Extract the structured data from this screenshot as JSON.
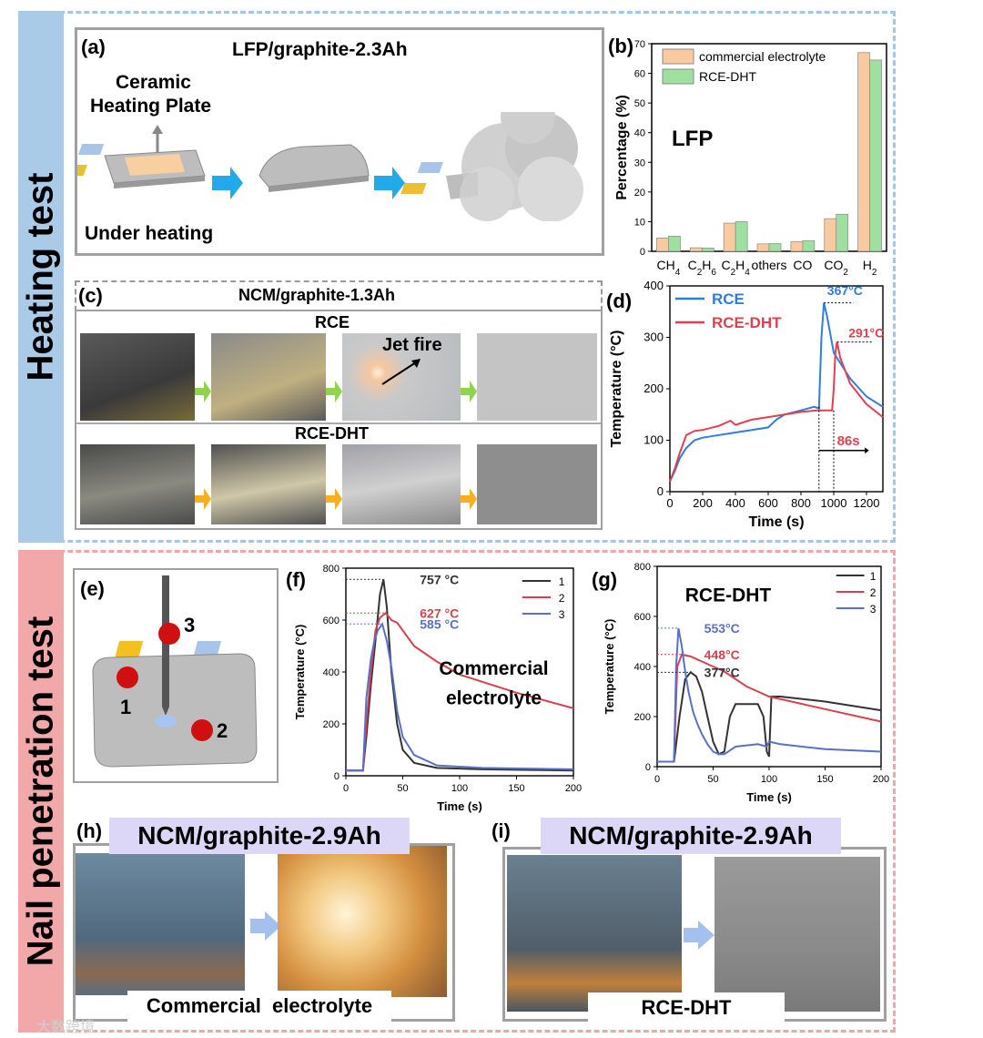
{
  "sections": {
    "heating": "Heating test",
    "nail": "Nail penetration test"
  },
  "colors": {
    "heating_border": "#9ec8ea",
    "heating_side": "#a9cbe8",
    "nail_border": "#f0a6a6",
    "nail_side": "#f2a8a8",
    "orange_bar": "#f9c9a0",
    "green_bar": "#9fdf9f",
    "rce_blue": "#2f7ddc",
    "rce_red": "#e04050",
    "curve_black": "#333333",
    "curve_red": "#d9404e",
    "curve_blue": "#5a6fc8"
  },
  "panel_a": {
    "letter": "(a)",
    "title": "LFP/graphite-2.3Ah",
    "plate_label_1": "Ceramic",
    "plate_label_2": "Heating Plate",
    "caption": "Under heating"
  },
  "panel_c": {
    "letter": "(c)",
    "title": "NCM/graphite-1.3Ah",
    "row1": "RCE",
    "row2": "RCE-DHT",
    "jet_fire": "Jet fire"
  },
  "panel_e": {
    "letter": "(e)",
    "points": [
      "1",
      "2",
      "3"
    ]
  },
  "panel_h": {
    "letter": "(h)",
    "title": "NCM/graphite-2.9Ah",
    "caption": "Commercial  electrolyte"
  },
  "panel_i": {
    "letter": "(i)",
    "title": "NCM/graphite-2.9Ah",
    "caption": "RCE-DHT"
  },
  "watermark": "大数跨境",
  "chart_data": [
    {
      "id": "b",
      "letter": "(b)",
      "type": "bar",
      "annotation": "LFP",
      "ylabel": "Percentage (%)",
      "ylim": [
        0,
        70
      ],
      "yticks": [
        "0",
        "10",
        "20",
        "30",
        "40",
        "50",
        "60",
        "70"
      ],
      "categories": [
        "CH4",
        "C2H6",
        "C2H4",
        "others",
        "CO",
        "CO2",
        "H2"
      ],
      "category_labels": {
        "ch4": {
          "main": "CH",
          "sub": "4"
        },
        "c2h6": {
          "main": "C",
          "sub": "2",
          "main2": "H",
          "sub2": "6"
        },
        "c2h4": {
          "main": "C",
          "sub": "2",
          "main2": "H",
          "sub2": "4"
        },
        "others": "others",
        "co": "CO",
        "co2": {
          "main": "CO",
          "sub": "2"
        },
        "h2": {
          "main": "H",
          "sub": "2"
        }
      },
      "legend": [
        "commercial electrolyte",
        "RCE-DHT"
      ],
      "series": [
        {
          "name": "commercial electrolyte",
          "values": [
            4.5,
            1.2,
            9.5,
            2.5,
            3.3,
            11,
            67
          ]
        },
        {
          "name": "RCE-DHT",
          "values": [
            5.1,
            1.1,
            10,
            2.6,
            3.6,
            12.5,
            64.5
          ]
        }
      ]
    },
    {
      "id": "d",
      "letter": "(d)",
      "type": "line",
      "xlabel": "Time (s)",
      "ylabel": "Temperature (°C)",
      "xlim": [
        0,
        1300
      ],
      "ylim": [
        0,
        400
      ],
      "xticks": [
        "0",
        "200",
        "400",
        "600",
        "800",
        "1000",
        "1200"
      ],
      "yticks": [
        "0",
        "100",
        "200",
        "300",
        "400"
      ],
      "legend": [
        "RCE",
        "RCE-DHT"
      ],
      "annotations": {
        "rce_peak": "367°C",
        "dht_peak": "291°C",
        "delay": "86s"
      },
      "series": [
        {
          "name": "RCE",
          "x": [
            0,
            30,
            60,
            100,
            150,
            200,
            300,
            400,
            500,
            600,
            650,
            700,
            800,
            880,
            910,
            925,
            940,
            960,
            1000,
            1100,
            1200,
            1300
          ],
          "y": [
            20,
            40,
            65,
            85,
            100,
            105,
            110,
            115,
            120,
            125,
            140,
            150,
            158,
            165,
            162,
            300,
            367,
            340,
            270,
            220,
            185,
            165
          ]
        },
        {
          "name": "RCE-DHT",
          "x": [
            0,
            30,
            60,
            100,
            150,
            200,
            300,
            370,
            400,
            500,
            600,
            700,
            800,
            900,
            990,
            1000,
            1010,
            1020,
            1040,
            1100,
            1200,
            1300
          ],
          "y": [
            20,
            45,
            75,
            110,
            118,
            120,
            128,
            138,
            130,
            140,
            145,
            150,
            155,
            158,
            158,
            200,
            270,
            291,
            260,
            210,
            170,
            145
          ]
        }
      ]
    },
    {
      "id": "f",
      "letter": "(f)",
      "type": "line",
      "xlabel": "Time (s)",
      "ylabel": "Temperature (°C)",
      "xlim": [
        0,
        200
      ],
      "ylim": [
        0,
        800
      ],
      "xticks": [
        "0",
        "50",
        "100",
        "150",
        "200"
      ],
      "yticks": [
        "0",
        "200",
        "400",
        "600",
        "800"
      ],
      "legend": [
        "1",
        "2",
        "3"
      ],
      "annotation_1": "Commercial",
      "annotation_2": "electrolyte",
      "peaks": {
        "p1": "757 °C",
        "p2": "627 °C",
        "p3": "585 °C"
      },
      "series": [
        {
          "name": "1",
          "x": [
            0,
            15,
            18,
            22,
            26,
            30,
            33,
            36,
            40,
            45,
            50,
            60,
            80,
            120,
            200
          ],
          "y": [
            20,
            20,
            150,
            350,
            520,
            700,
            757,
            650,
            400,
            200,
            100,
            50,
            30,
            25,
            20
          ]
        },
        {
          "name": "2",
          "x": [
            0,
            15,
            18,
            22,
            26,
            30,
            35,
            40,
            45,
            50,
            60,
            80,
            100,
            150,
            200
          ],
          "y": [
            20,
            20,
            200,
            400,
            560,
            610,
            627,
            600,
            590,
            560,
            500,
            440,
            390,
            320,
            260
          ]
        },
        {
          "name": "3",
          "x": [
            0,
            15,
            18,
            22,
            25,
            28,
            32,
            36,
            40,
            45,
            50,
            60,
            80,
            120,
            200
          ],
          "y": [
            20,
            20,
            300,
            450,
            520,
            560,
            585,
            520,
            420,
            250,
            150,
            80,
            40,
            30,
            25
          ]
        }
      ]
    },
    {
      "id": "g",
      "letter": "(g)",
      "type": "line",
      "title": "RCE-DHT",
      "xlabel": "Time (s)",
      "ylabel": "Temperature (°C)",
      "xlim": [
        0,
        200
      ],
      "ylim": [
        0,
        800
      ],
      "xticks": [
        "0",
        "50",
        "100",
        "150",
        "200"
      ],
      "yticks": [
        "0",
        "200",
        "400",
        "600",
        "800"
      ],
      "legend": [
        "1",
        "2",
        "3"
      ],
      "peaks": {
        "p3": "553°C",
        "p2": "448°C",
        "p1": "377°C"
      },
      "series": [
        {
          "name": "1",
          "x": [
            0,
            15,
            20,
            25,
            30,
            35,
            40,
            45,
            50,
            55,
            60,
            65,
            70,
            80,
            90,
            95,
            98,
            100,
            102,
            110,
            150,
            200
          ],
          "y": [
            20,
            20,
            200,
            350,
            377,
            360,
            300,
            200,
            100,
            50,
            60,
            200,
            250,
            250,
            250,
            200,
            60,
            40,
            280,
            280,
            260,
            225
          ]
        },
        {
          "name": "2",
          "x": [
            0,
            15,
            18,
            22,
            25,
            30,
            40,
            50,
            60,
            70,
            80,
            90,
            100,
            120,
            150,
            200
          ],
          "y": [
            20,
            20,
            400,
            448,
            445,
            440,
            420,
            400,
            380,
            350,
            320,
            300,
            280,
            260,
            230,
            180
          ]
        },
        {
          "name": "3",
          "x": [
            0,
            15,
            17,
            19,
            22,
            25,
            28,
            32,
            36,
            40,
            45,
            50,
            55,
            60,
            70,
            90,
            98,
            100,
            110,
            150,
            200
          ],
          "y": [
            20,
            20,
            400,
            553,
            480,
            380,
            300,
            220,
            170,
            130,
            90,
            60,
            50,
            50,
            80,
            90,
            80,
            100,
            90,
            70,
            60
          ]
        }
      ]
    }
  ]
}
